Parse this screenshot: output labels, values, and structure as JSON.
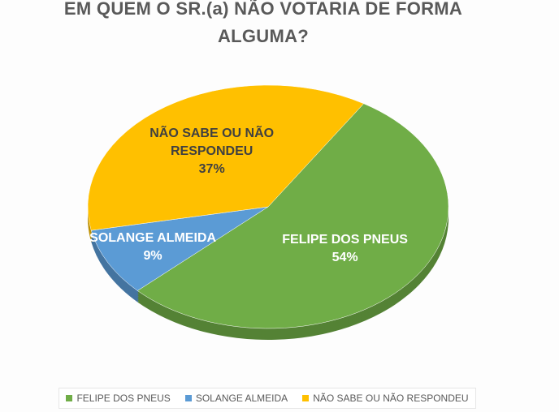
{
  "chart_data": {
    "type": "pie",
    "title": "EM QUEM O SR.(a) NÃO VOTARIA DE FORMA ALGUMA?",
    "categories": [
      "FELIPE DOS PNEUS",
      "SOLANGE ALMEIDA",
      "NÃO SABE OU NÃO RESPONDEU"
    ],
    "values": [
      54,
      9,
      37
    ],
    "value_labels": [
      "54%",
      "9%",
      "37%"
    ],
    "colors": [
      "#70ad47",
      "#5b9bd5",
      "#ffc000"
    ],
    "label_colors": [
      "#ffffff",
      "#ffffff",
      "#404040"
    ],
    "legend": "bottom"
  }
}
